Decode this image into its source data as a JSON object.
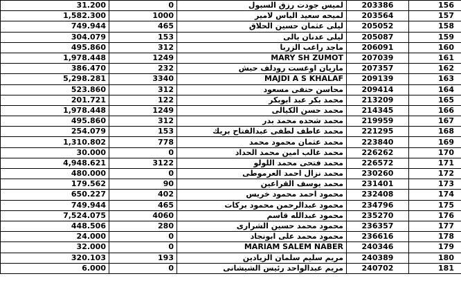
{
  "table": {
    "rows": [
      [
        "31.200",
        "0",
        "لميس جودت رزق السبول",
        "203386",
        "156"
      ],
      [
        "1,582.300",
        "1000",
        "لميحه سعيد الياس لامير",
        "203564",
        "157"
      ],
      [
        "749.944",
        "465",
        "ليلى عثمان حسين الحلاق",
        "205052",
        "158"
      ],
      [
        "304.079",
        "153",
        "ليلى عدنان بالى",
        "205087",
        "159"
      ],
      [
        "495.860",
        "312",
        "ماجد راغب الزربا",
        "206091",
        "160"
      ],
      [
        "1,978.448",
        "1249",
        "MARY SH ZUMOT",
        "207039",
        "161"
      ],
      [
        "386.470",
        "232",
        "ماريان اوغست رودلف حبش",
        "207357",
        "162"
      ],
      [
        "5,298.281",
        "3340",
        "MAJDI A S KHALAF",
        "209139",
        "163"
      ],
      [
        "523.860",
        "312",
        "محاسن حنفى مسعود",
        "209414",
        "164"
      ],
      [
        "201.721",
        "122",
        "محمد بكر عبد ابوبكر",
        "213209",
        "165"
      ],
      [
        "1,978.448",
        "1249",
        "محمد حسن الكيالى",
        "214345",
        "166"
      ],
      [
        "495.860",
        "312",
        "محمد شحده محمد بدر",
        "219959",
        "167"
      ],
      [
        "254.079",
        "153",
        "محمد عاطف لطفى عبدالفتاح بريك",
        "221295",
        "168"
      ],
      [
        "1,310.802",
        "778",
        "محمد عثمان محمود محمد",
        "223840",
        "169"
      ],
      [
        "30.000",
        "0",
        "محمد غالب امين محمد الحداد",
        "226262",
        "170"
      ],
      [
        "4,948.621",
        "3122",
        "محمد فتحى محمد اللولو",
        "226572",
        "171"
      ],
      [
        "480.000",
        "0",
        "محمد نزال احمد العرموطى",
        "230260",
        "172"
      ],
      [
        "179.562",
        "90",
        "محمد يوسف القراعين",
        "231401",
        "173"
      ],
      [
        "650.227",
        "402",
        "محمود احمد محمود خريس",
        "232408",
        "174"
      ],
      [
        "749.944",
        "465",
        "محمود عبدالرحمن محمود بركات",
        "234796",
        "175"
      ],
      [
        "7,524.075",
        "4060",
        "محمود عبدالله قاسم",
        "235270",
        "176"
      ],
      [
        "448.506",
        "280",
        "محمود محمد حسين الشرارى",
        "236357",
        "177"
      ],
      [
        "24.000",
        "0",
        "محمود محمد على ابونجاد",
        "236616",
        "178"
      ],
      [
        "32.000",
        "0",
        "MARIAM SALEM NABER",
        "240346",
        "179"
      ],
      [
        "320.103",
        "193",
        "مريم سليم سلمان الزيادين",
        "240389",
        "180"
      ],
      [
        "6.000",
        "0",
        "مريم عبدالواحد رئيس الشيشانى",
        "240702",
        "181"
      ]
    ]
  }
}
